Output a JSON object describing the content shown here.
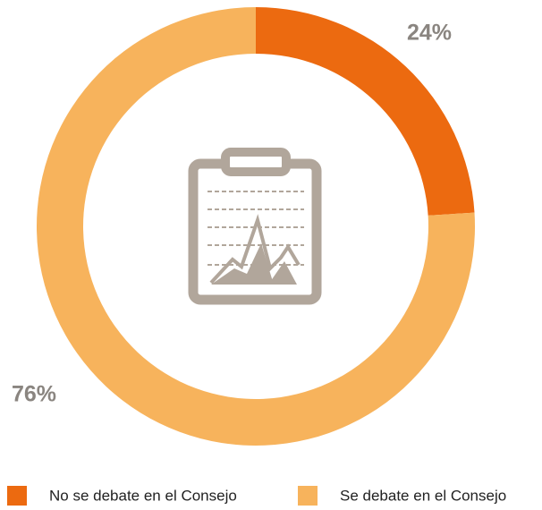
{
  "chart_data": {
    "type": "pie",
    "categories": [
      "No se debate en el Consejo",
      "Se debate en el Consejo"
    ],
    "values": [
      24,
      76
    ],
    "value_labels": [
      "24%",
      "76%"
    ],
    "colors": [
      "#ec6a10",
      "#f7b35c"
    ],
    "donut": true
  }
}
